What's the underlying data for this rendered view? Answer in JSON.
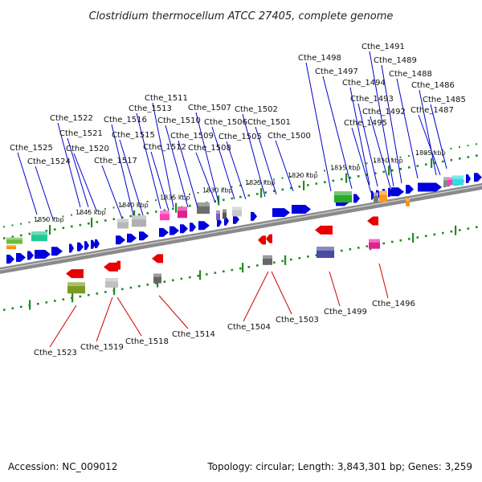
{
  "title": "Clostridium thermocellum ATCC 27405, complete genome",
  "footer": {
    "accession": "Accession: NC_009012",
    "summary": "Topology: circular; Length: 3,843,301 bp; Genes: 3,259"
  },
  "scale": {
    "ticks": [
      "1850 kbp",
      "1845 kbp",
      "1840 kbp",
      "1835 kbp",
      "1830 kbp",
      "1825 kbp",
      "1820 kbp",
      "1815 kbp",
      "1810 kbp",
      "1805 kbp"
    ]
  },
  "colors": {
    "forward_label": "#0000cc",
    "reverse_label": "#cc0000",
    "forward_gene": "#0000dd",
    "reverse_gene": "#e80000",
    "backbone": "#8a8a8a",
    "tick": "#228b22"
  },
  "forward_labels": [
    "Cthe_1525",
    "Cthe_1524",
    "Cthe_1522",
    "Cthe_1521",
    "Cthe_1520",
    "Cthe_1517",
    "Cthe_1516",
    "Cthe_1515",
    "Cthe_1513",
    "Cthe_1511",
    "Cthe_1512",
    "Cthe_1510",
    "Cthe_1509",
    "Cthe_1508",
    "Cthe_1507",
    "Cthe_1506",
    "Cthe_1505",
    "Cthe_1502",
    "Cthe_1501",
    "Cthe_1500",
    "Cthe_1498",
    "Cthe_1497",
    "Cthe_1494",
    "Cthe_1493",
    "Cthe_1495",
    "Cthe_1492",
    "Cthe_1491",
    "Cthe_1489",
    "Cthe_1488",
    "Cthe_1486",
    "Cthe_1487",
    "Cthe_1485"
  ],
  "reverse_labels": [
    "Cthe_1523",
    "Cthe_1519",
    "Cthe_1518",
    "Cthe_1514",
    "Cthe_1504",
    "Cthe_1503",
    "Cthe_1499",
    "Cthe_1496"
  ]
}
